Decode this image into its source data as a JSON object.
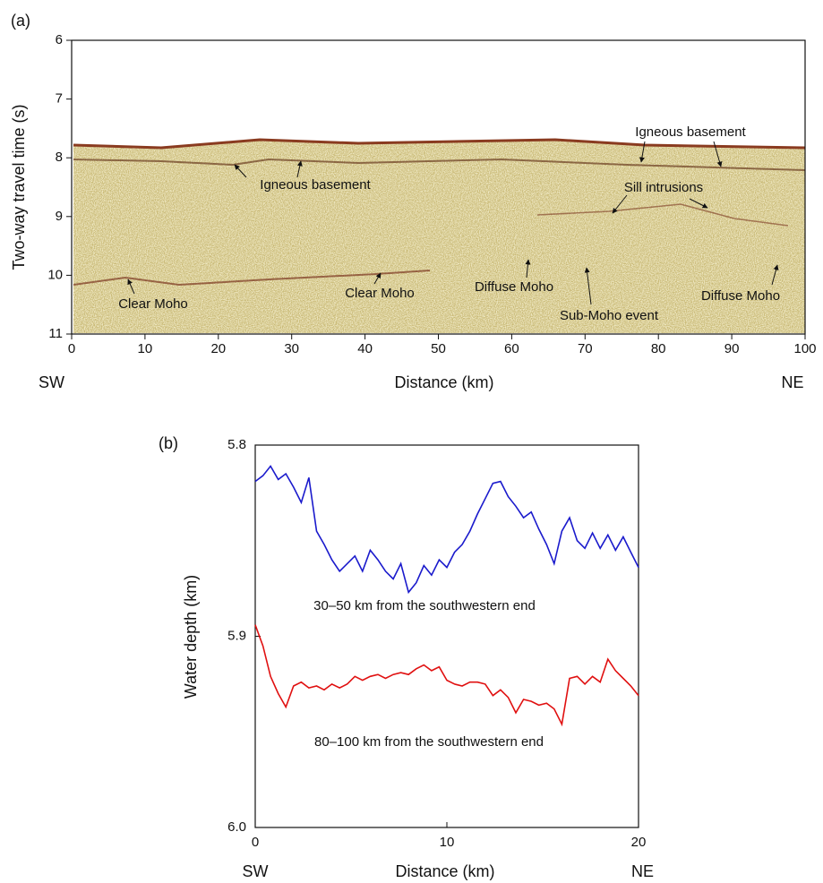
{
  "chart_data": [
    {
      "type": "image",
      "panel": "(a)",
      "x_label": "Distance (km)",
      "y_label": "Two-way travel time (s)",
      "x_left_label": "SW",
      "x_right_label": "NE",
      "xlim": [
        0,
        100
      ],
      "xticks": [
        0,
        10,
        20,
        30,
        40,
        50,
        60,
        70,
        80,
        90,
        100
      ],
      "ylim": [
        11,
        6
      ],
      "yticks": [
        6,
        7,
        8,
        9,
        10,
        11
      ],
      "annotations": [
        "Igneous basement",
        "Igneous basement",
        "Sill intrusions",
        "Clear Moho",
        "Clear Moho",
        "Diffuse Moho",
        "Sub-Moho event",
        "Diffuse Moho"
      ]
    },
    {
      "type": "line",
      "panel": "(b)",
      "x_label": "Distance (km)",
      "y_label": "Water depth (km)",
      "x_left_label": "SW",
      "x_right_label": "NE",
      "xlim": [
        0,
        20
      ],
      "xticks": [
        0,
        10,
        20
      ],
      "ylim": [
        6.0,
        5.8
      ],
      "yticks": [
        5.8,
        5.9,
        {
          "value": 6.0,
          "label": "6.0"
        }
      ],
      "x": [
        0,
        0.4,
        0.8,
        1.2,
        1.6,
        2.0,
        2.4,
        2.8,
        3.2,
        3.6,
        4.0,
        4.4,
        4.8,
        5.2,
        5.6,
        6.0,
        6.4,
        6.8,
        7.2,
        7.6,
        8.0,
        8.4,
        8.8,
        9.2,
        9.6,
        10.0,
        10.4,
        10.8,
        11.2,
        11.6,
        12.0,
        12.4,
        12.8,
        13.2,
        13.6,
        14.0,
        14.4,
        14.8,
        15.2,
        15.6,
        16.0,
        16.4,
        16.8,
        17.2,
        17.6,
        18.0,
        18.4,
        18.8,
        19.2,
        19.6,
        20.0
      ],
      "series": [
        {
          "name": "30–50 km from the southwestern end",
          "color": "#1a1acc",
          "values": [
            5.819,
            5.816,
            5.811,
            5.818,
            5.815,
            5.822,
            5.83,
            5.817,
            5.845,
            5.852,
            5.86,
            5.866,
            5.862,
            5.858,
            5.866,
            5.855,
            5.86,
            5.866,
            5.87,
            5.862,
            5.877,
            5.872,
            5.863,
            5.868,
            5.86,
            5.864,
            5.856,
            5.852,
            5.845,
            5.836,
            5.828,
            5.82,
            5.819,
            5.827,
            5.832,
            5.838,
            5.835,
            5.844,
            5.852,
            5.862,
            5.845,
            5.838,
            5.85,
            5.854,
            5.846,
            5.854,
            5.847,
            5.855,
            5.848,
            5.856,
            5.864
          ]
        },
        {
          "name": "80–100 km from the southwestern end",
          "color": "#e01010",
          "values": [
            5.894,
            5.905,
            5.921,
            5.93,
            5.937,
            5.926,
            5.924,
            5.927,
            5.926,
            5.928,
            5.925,
            5.927,
            5.925,
            5.921,
            5.923,
            5.921,
            5.92,
            5.922,
            5.92,
            5.919,
            5.92,
            5.917,
            5.915,
            5.918,
            5.916,
            5.923,
            5.925,
            5.926,
            5.924,
            5.924,
            5.925,
            5.931,
            5.928,
            5.932,
            5.94,
            5.933,
            5.934,
            5.936,
            5.935,
            5.938,
            5.946,
            5.922,
            5.921,
            5.925,
            5.921,
            5.924,
            5.912,
            5.918,
            5.922,
            5.926,
            5.931
          ]
        }
      ]
    }
  ]
}
